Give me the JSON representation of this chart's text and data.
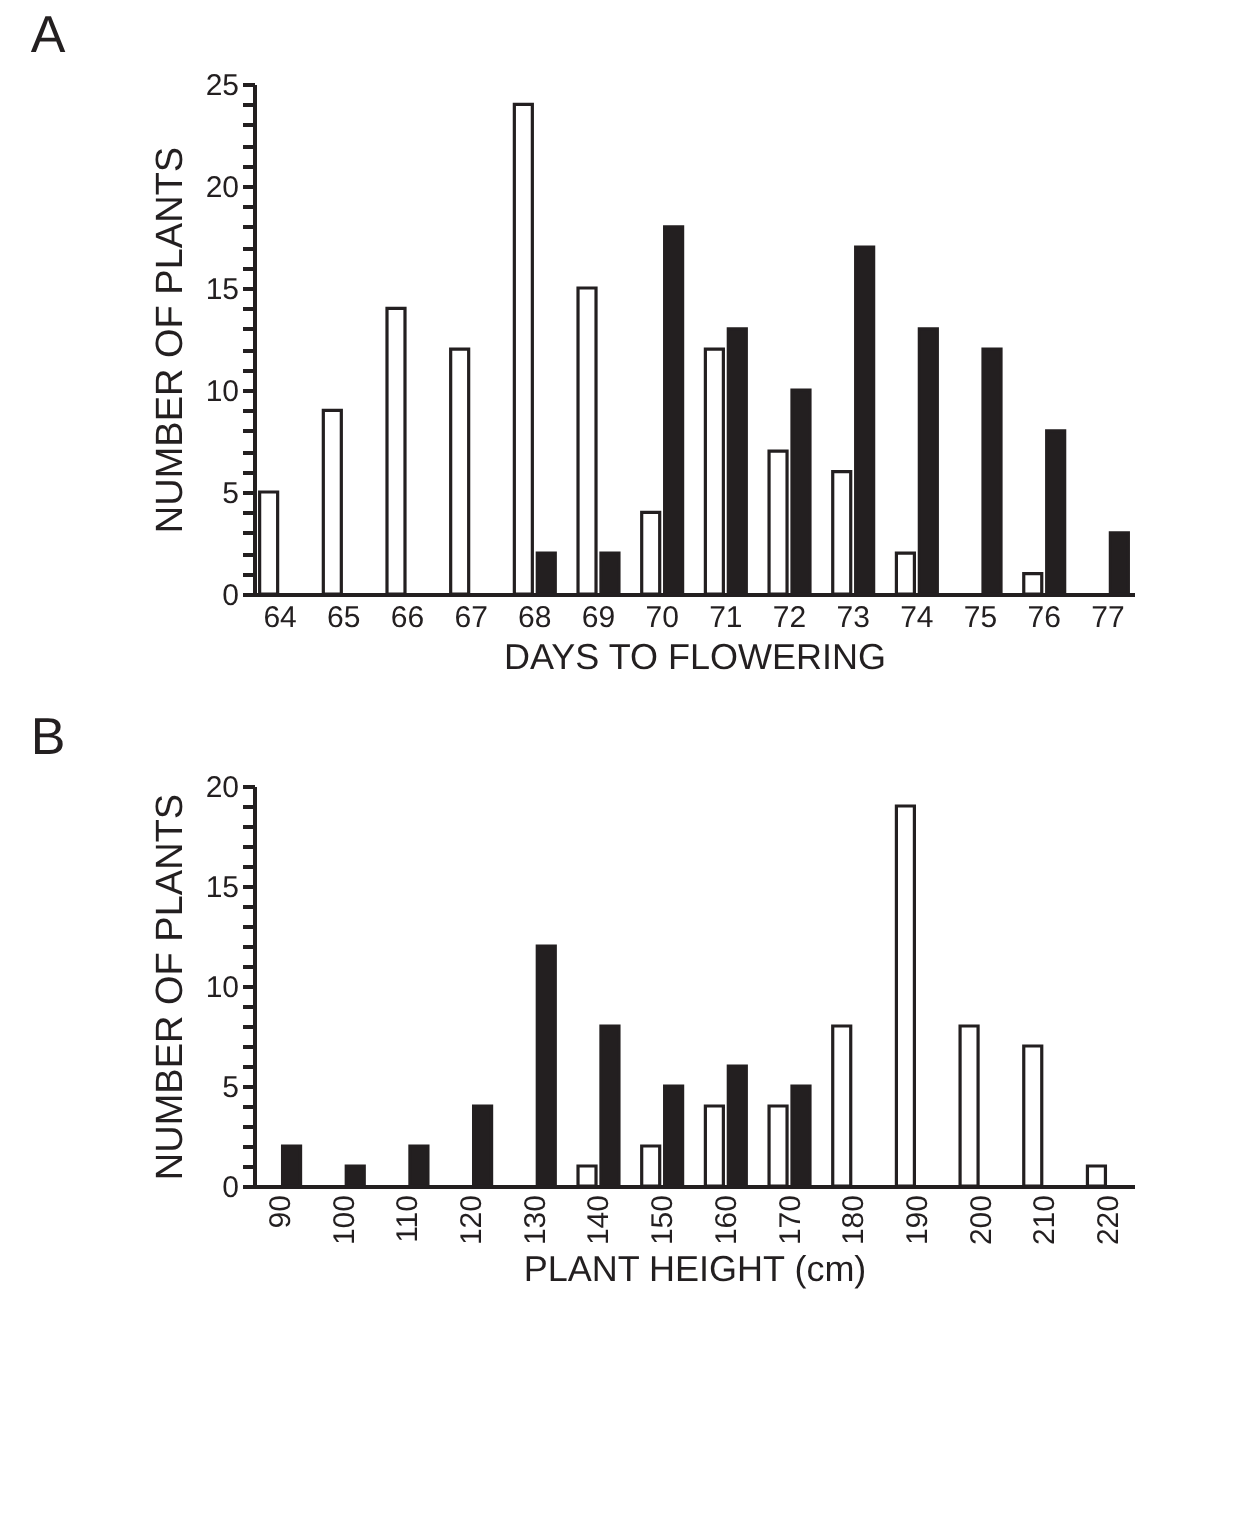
{
  "chart_data": [
    {
      "type": "bar",
      "title": "A",
      "xlabel": "DAYS TO FLOWERING",
      "ylabel": "NUMBER OF PLANTS",
      "categories": [
        "64",
        "65",
        "66",
        "67",
        "68",
        "69",
        "70",
        "71",
        "72",
        "73",
        "74",
        "75",
        "76",
        "77"
      ],
      "series": [
        {
          "color": "#ffffff",
          "values": [
            5,
            9,
            14,
            12,
            24,
            15,
            4,
            12,
            7,
            6,
            2,
            null,
            1,
            null
          ]
        },
        {
          "color": "#231f20",
          "values": [
            null,
            null,
            null,
            null,
            2,
            2,
            18,
            13,
            10,
            17,
            13,
            12,
            8,
            3
          ]
        }
      ],
      "ylim": [
        0,
        25
      ],
      "yticks": [
        0,
        {
          "value": 1,
          "label": null
        },
        {
          "value": 2,
          "label": null
        },
        {
          "value": 3,
          "label": null
        },
        {
          "value": 4,
          "label": null
        },
        5,
        {
          "value": 6,
          "label": null
        },
        {
          "value": 7,
          "label": null
        },
        {
          "value": 8,
          "label": null
        },
        {
          "value": 9,
          "label": null
        },
        10,
        {
          "value": 11,
          "label": null
        },
        {
          "value": 12,
          "label": null
        },
        {
          "value": 13,
          "label": null
        },
        {
          "value": 14,
          "label": null
        },
        15,
        {
          "value": 16,
          "label": null
        },
        {
          "value": 17,
          "label": null
        },
        {
          "value": 18,
          "label": null
        },
        {
          "value": 19,
          "label": null
        },
        20,
        {
          "value": 21,
          "label": null
        },
        {
          "value": 22,
          "label": null
        },
        {
          "value": 23,
          "label": null
        },
        {
          "value": 24,
          "label": null
        },
        25
      ],
      "grid": false,
      "legend": false
    },
    {
      "type": "bar",
      "title": "B",
      "xlabel": "PLANT HEIGHT (cm)",
      "ylabel": "NUMBER OF PLANTS",
      "categories": [
        "90",
        "100",
        "110",
        "120",
        "130",
        "140",
        "150",
        "160",
        "170",
        "180",
        "190",
        "200",
        "210",
        "220"
      ],
      "series": [
        {
          "color": "#ffffff",
          "values": [
            null,
            null,
            null,
            null,
            null,
            1,
            2,
            4,
            4,
            8,
            19,
            8,
            7,
            1
          ]
        },
        {
          "color": "#231f20",
          "values": [
            2,
            1,
            2,
            4,
            12,
            8,
            5,
            6,
            5,
            null,
            null,
            null,
            null,
            null
          ]
        }
      ],
      "ylim": [
        0,
        20
      ],
      "yticks": [
        0,
        {
          "value": 1,
          "label": null
        },
        {
          "value": 2,
          "label": null
        },
        {
          "value": 3,
          "label": null
        },
        {
          "value": 4,
          "label": null
        },
        5,
        {
          "value": 6,
          "label": null
        },
        {
          "value": 7,
          "label": null
        },
        {
          "value": 8,
          "label": null
        },
        {
          "value": 9,
          "label": null
        },
        10,
        {
          "value": 11,
          "label": null
        },
        {
          "value": 12,
          "label": null
        },
        {
          "value": 13,
          "label": null
        },
        {
          "value": 14,
          "label": null
        },
        15,
        {
          "value": 16,
          "label": null
        },
        {
          "value": 17,
          "label": null
        },
        {
          "value": 18,
          "label": null
        },
        {
          "value": 19,
          "label": null
        },
        20
      ],
      "grid": false,
      "legend": false
    }
  ]
}
